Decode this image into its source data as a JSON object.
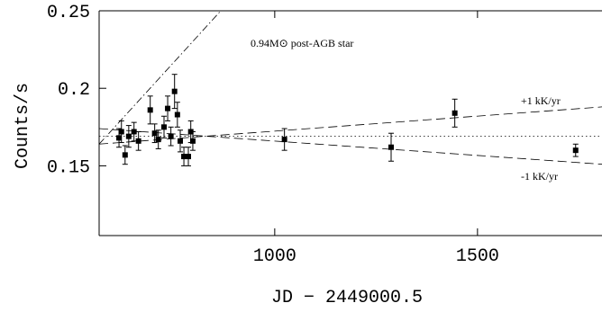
{
  "chart_data": {
    "type": "scatter",
    "x_label": "JD − 2449000.5",
    "y_label": "Counts/s",
    "xlim": [
      567,
      1807
    ],
    "ylim": [
      0.105,
      0.25
    ],
    "xticks": [
      1000,
      1500
    ],
    "yticks": [
      0.15,
      0.2,
      0.25
    ],
    "color": "#000000",
    "x": [
      616,
      622,
      631,
      640,
      653,
      664,
      693,
      704,
      713,
      727,
      736,
      744,
      753,
      760,
      767,
      776,
      787,
      793,
      798,
      1024,
      1287,
      1444,
      1742
    ],
    "values": [
      0.168,
      0.172,
      0.157,
      0.169,
      0.172,
      0.166,
      0.186,
      0.171,
      0.167,
      0.175,
      0.187,
      0.169,
      0.198,
      0.183,
      0.166,
      0.156,
      0.156,
      0.172,
      0.166,
      0.167,
      0.162,
      0.184,
      0.16
    ],
    "errors": [
      0.006,
      0.007,
      0.006,
      0.007,
      0.006,
      0.006,
      0.009,
      0.006,
      0.006,
      0.007,
      0.008,
      0.006,
      0.011,
      0.008,
      0.007,
      0.006,
      0.006,
      0.007,
      0.006,
      0.007,
      0.009,
      0.009,
      0.004
    ],
    "lines": [
      {
        "label": "0.94M⊙ post-AGB star",
        "style": "dashdot",
        "x": [
          567,
          867
        ],
        "y": [
          0.164,
          0.25
        ]
      },
      {
        "label": "+1 kK/yr",
        "style": "dashed",
        "x": [
          567,
          1807
        ],
        "y": [
          0.164,
          0.188
        ]
      },
      {
        "label": "-1 kK/yr",
        "style": "dashed",
        "x": [
          567,
          1807
        ],
        "y": [
          0.174,
          0.151
        ]
      },
      {
        "style": "dotted",
        "x": [
          567,
          1807
        ],
        "y": [
          0.169,
          0.169
        ]
      }
    ]
  }
}
